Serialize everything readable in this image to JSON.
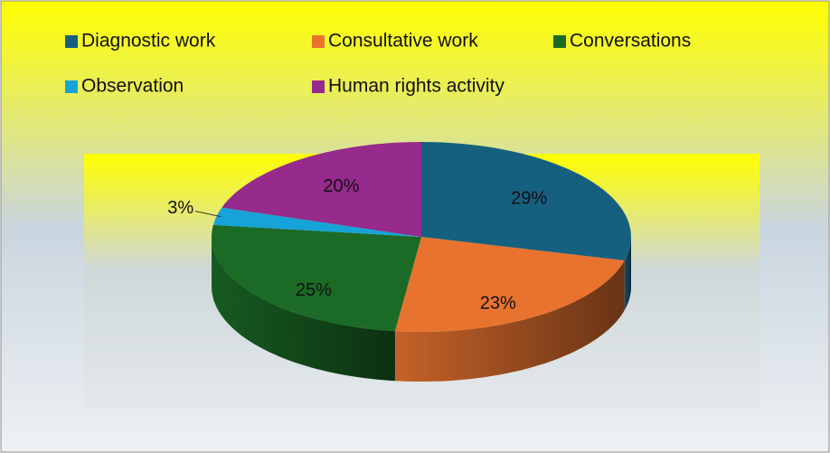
{
  "chart_data": {
    "type": "pie3d",
    "categories": [
      "Diagnostic work",
      "Consultative work",
      "Conversations",
      "Observation",
      "Human rights activity"
    ],
    "values": [
      29,
      23,
      25,
      3,
      20
    ],
    "value_labels": [
      "29%",
      "23%",
      "25%",
      "3%",
      "20%"
    ],
    "colors": [
      "#16607f",
      "#e8732f",
      "#1b6b27",
      "#15a3d8",
      "#962a8d"
    ],
    "legend": "top"
  }
}
